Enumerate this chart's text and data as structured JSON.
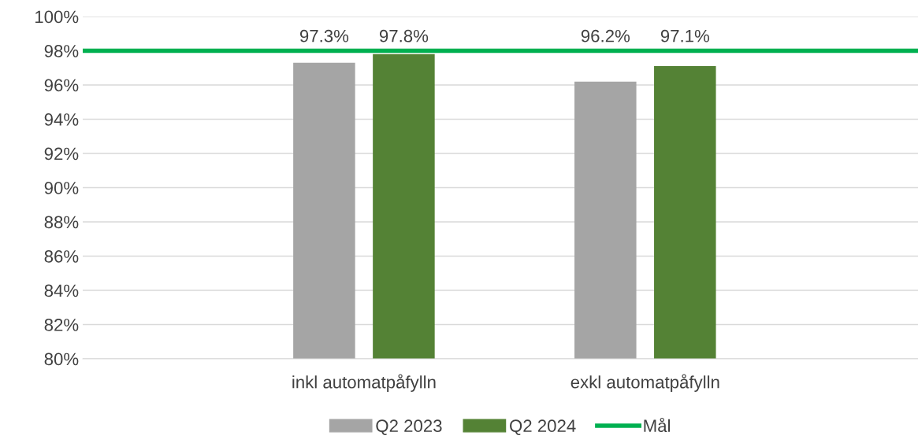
{
  "chart_data": {
    "type": "bar",
    "categories": [
      "inkl automatpåfylln",
      "exkl automatpåfylln"
    ],
    "series": [
      {
        "name": "Q2 2023",
        "color": "#a5a5a5",
        "values": [
          97.3,
          96.2
        ],
        "value_labels": [
          "97.3%",
          "96.2%"
        ]
      },
      {
        "name": "Q2 2024",
        "color": "#548235",
        "values": [
          97.8,
          97.1
        ],
        "value_labels": [
          "97.8%",
          "97.1%"
        ]
      }
    ],
    "ylim": [
      80,
      100
    ],
    "yticks": [
      {
        "value": 80,
        "label": "80%"
      },
      {
        "value": 82,
        "label": "82%"
      },
      {
        "value": 84,
        "label": "84%"
      },
      {
        "value": 86,
        "label": "86%"
      },
      {
        "value": 88,
        "label": "88%"
      },
      {
        "value": 90,
        "label": "90%"
      },
      {
        "value": 92,
        "label": "92%"
      },
      {
        "value": 94,
        "label": "94%"
      },
      {
        "value": 96,
        "label": "96%"
      },
      {
        "value": 98,
        "label": "98%"
      },
      {
        "value": 100,
        "label": "100%"
      }
    ],
    "ref_lines": [
      {
        "axis": "y",
        "value": 98,
        "label": "Mål",
        "color": "#00b050"
      }
    ],
    "grid": "y",
    "legend": "bottom"
  }
}
